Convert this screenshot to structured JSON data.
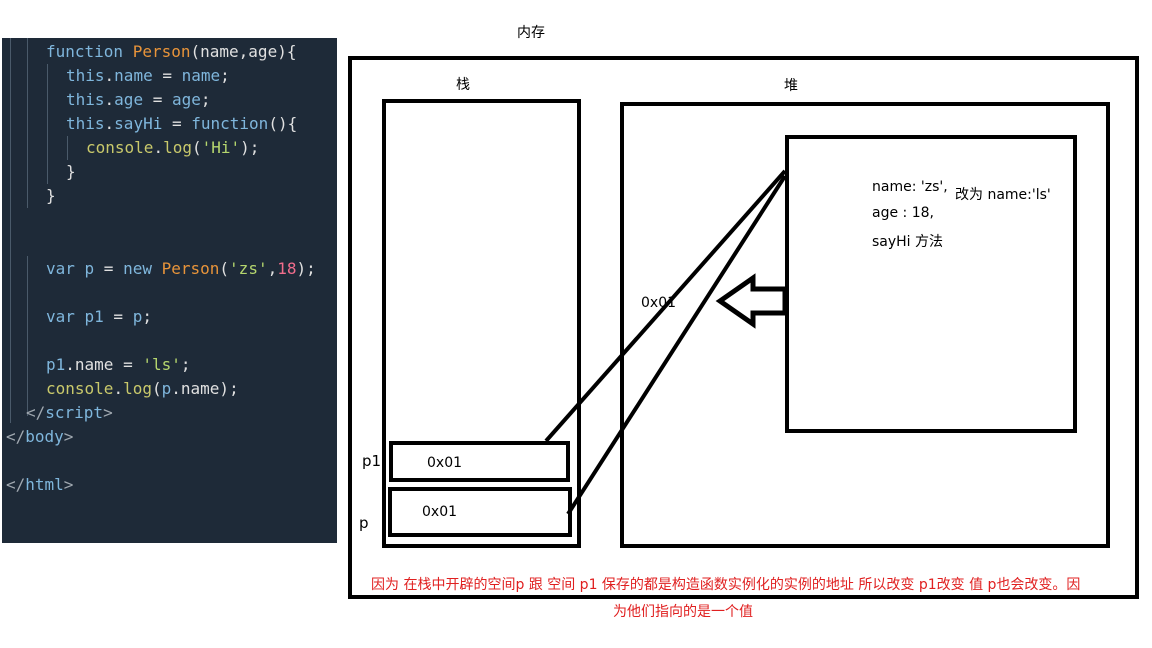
{
  "code": {
    "lines": [
      [
        [
          "kw",
          "function "
        ],
        [
          "cls",
          "Person"
        ],
        [
          "plain",
          "(name,age){"
        ]
      ],
      [
        [
          "kw",
          "this"
        ],
        [
          "plain",
          "."
        ],
        [
          "kw",
          "name"
        ],
        [
          "plain",
          " = "
        ],
        [
          "kw",
          "name"
        ],
        [
          "plain",
          ";"
        ]
      ],
      [
        [
          "kw",
          "this"
        ],
        [
          "plain",
          "."
        ],
        [
          "kw",
          "age"
        ],
        [
          "plain",
          " = "
        ],
        [
          "kw",
          "age"
        ],
        [
          "plain",
          ";"
        ]
      ],
      [
        [
          "kw",
          "this"
        ],
        [
          "plain",
          "."
        ],
        [
          "kw",
          "sayHi"
        ],
        [
          "plain",
          " = "
        ],
        [
          "kw",
          "function"
        ],
        [
          "plain",
          "(){"
        ]
      ],
      [
        [
          "fn",
          "console"
        ],
        [
          "plain",
          "."
        ],
        [
          "fn",
          "log"
        ],
        [
          "plain",
          "("
        ],
        [
          "str",
          "'Hi'"
        ],
        [
          "plain",
          ");"
        ]
      ],
      [
        [
          "plain",
          "}"
        ]
      ],
      [
        [
          "plain",
          "}"
        ]
      ],
      [
        [
          "kw",
          "var "
        ],
        [
          "kw",
          "p"
        ],
        [
          "plain",
          " = "
        ],
        [
          "kw",
          "new "
        ],
        [
          "cls",
          "Person"
        ],
        [
          "plain",
          "("
        ],
        [
          "str",
          "'zs'"
        ],
        [
          "plain",
          ","
        ],
        [
          "num",
          "18"
        ],
        [
          "plain",
          ");"
        ]
      ],
      [
        [
          "kw",
          "var "
        ],
        [
          "kw",
          "p1"
        ],
        [
          "plain",
          " = "
        ],
        [
          "kw",
          "p"
        ],
        [
          "plain",
          ";"
        ]
      ],
      [
        [
          "kw",
          "p1"
        ],
        [
          "plain",
          ".name = "
        ],
        [
          "str",
          "'ls'"
        ],
        [
          "plain",
          ";"
        ]
      ],
      [
        [
          "fn",
          "console"
        ],
        [
          "plain",
          "."
        ],
        [
          "fn",
          "log"
        ],
        [
          "plain",
          "("
        ],
        [
          "kw",
          "p"
        ],
        [
          "plain",
          ".name);"
        ]
      ],
      [
        [
          "tag",
          "</"
        ],
        [
          "tagname",
          "script"
        ],
        [
          "tag",
          ">"
        ]
      ],
      [
        [
          "tag",
          "</"
        ],
        [
          "tagname",
          "body"
        ],
        [
          "tag",
          ">"
        ]
      ],
      [
        [
          "tag",
          "</"
        ],
        [
          "tagname",
          "html"
        ],
        [
          "tag",
          ">"
        ]
      ]
    ]
  },
  "diagram": {
    "memory_title": "内存",
    "stack_title": "栈",
    "heap_title": "堆",
    "p1_label": "p1",
    "p_label": "p",
    "p1_value": "0x01",
    "p_value": "0x01",
    "heap_address": "0x01",
    "object_name": "name: 'zs',",
    "object_change": "改为 name:'ls'",
    "object_age": "age : 18,",
    "object_method": "sayHi 方法",
    "note_line1": "因为 在栈中开辟的空间p 跟 空间 p1 保存的都是构造函数实例化的实例的地址 所以改变 p1改变 值 p也会改变。因",
    "note_line2": "为他们指向的是一个值"
  },
  "colors": {
    "code_bg": "#1e2a38",
    "keyword": "#7fb6dc",
    "class_name": "#e8943a",
    "string": "#b5d66e",
    "number": "#f26d8c",
    "function": "#c9c96b",
    "note": "#e02020"
  }
}
